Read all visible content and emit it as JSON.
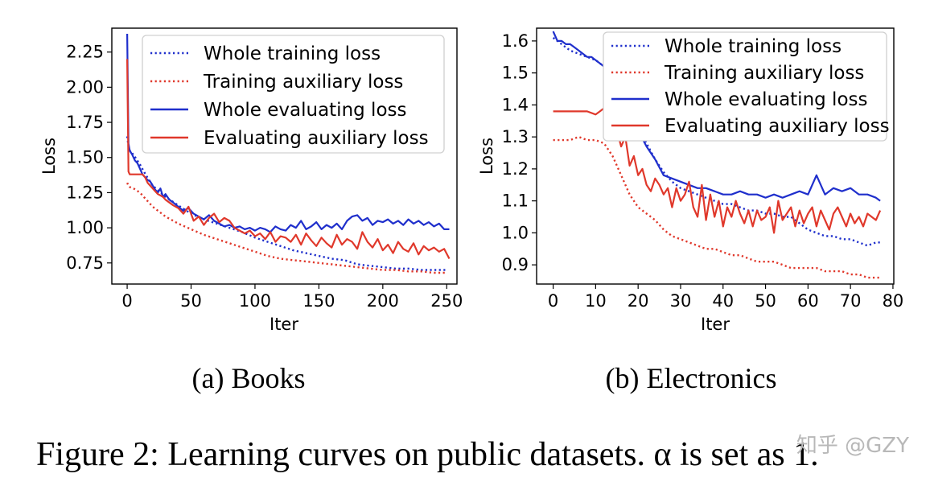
{
  "figure": {
    "caption": "Figure 2: Learning curves on public datasets. α is set as 1.",
    "watermark": "知乎 @GZY"
  },
  "colors": {
    "blue": "#1f2fcc",
    "red": "#e0382b"
  },
  "chart_data": [
    {
      "type": "line",
      "id": "books",
      "subcaption": "(a) Books",
      "xlabel": "Iter",
      "ylabel": "Loss",
      "xlim": [
        -12,
        258
      ],
      "ylim": [
        0.6,
        2.42
      ],
      "xticks": [
        0,
        50,
        100,
        150,
        200,
        250
      ],
      "yticks": [
        0.75,
        1.0,
        1.25,
        1.5,
        1.75,
        2.0,
        2.25
      ],
      "ytick_labels": [
        "0.75",
        "1.00",
        "1.25",
        "1.50",
        "1.75",
        "2.00",
        "2.25"
      ],
      "legend_position": "upper-right",
      "series": [
        {
          "name": "Whole training loss",
          "style": "dotted",
          "color": "blue",
          "x": [
            0,
            1,
            2,
            5,
            10,
            15,
            20,
            30,
            40,
            50,
            60,
            70,
            80,
            90,
            100,
            110,
            120,
            130,
            140,
            150,
            160,
            170,
            180,
            190,
            200,
            210,
            220,
            230,
            240,
            250
          ],
          "y": [
            1.65,
            1.58,
            1.55,
            1.52,
            1.45,
            1.37,
            1.3,
            1.22,
            1.16,
            1.1,
            1.06,
            1.03,
            1.0,
            0.97,
            0.93,
            0.9,
            0.87,
            0.84,
            0.82,
            0.8,
            0.78,
            0.77,
            0.74,
            0.73,
            0.72,
            0.71,
            0.71,
            0.7,
            0.7,
            0.7
          ]
        },
        {
          "name": "Training auxiliary loss",
          "style": "dotted",
          "color": "red",
          "x": [
            0,
            1,
            2,
            5,
            10,
            15,
            20,
            30,
            40,
            50,
            60,
            70,
            80,
            90,
            100,
            110,
            120,
            130,
            140,
            150,
            160,
            170,
            180,
            190,
            200,
            210,
            220,
            230,
            240,
            250
          ],
          "y": [
            1.32,
            1.3,
            1.29,
            1.28,
            1.25,
            1.2,
            1.15,
            1.08,
            1.03,
            0.99,
            0.95,
            0.92,
            0.89,
            0.86,
            0.83,
            0.8,
            0.78,
            0.77,
            0.76,
            0.75,
            0.74,
            0.73,
            0.72,
            0.71,
            0.7,
            0.7,
            0.69,
            0.69,
            0.68,
            0.68
          ]
        },
        {
          "name": "Whole evaluating loss",
          "style": "solid",
          "color": "blue",
          "x": [
            0,
            1,
            2,
            4,
            6,
            8,
            10,
            12,
            14,
            16,
            18,
            20,
            22,
            24,
            26,
            28,
            30,
            33,
            36,
            40,
            44,
            48,
            52,
            56,
            60,
            64,
            68,
            72,
            76,
            80,
            84,
            88,
            92,
            96,
            100,
            104,
            108,
            112,
            116,
            120,
            124,
            128,
            132,
            136,
            140,
            144,
            148,
            152,
            156,
            160,
            164,
            168,
            172,
            176,
            180,
            184,
            188,
            192,
            196,
            200,
            204,
            208,
            212,
            216,
            220,
            224,
            228,
            232,
            236,
            240,
            244,
            248,
            252
          ],
          "y": [
            2.38,
            1.6,
            1.55,
            1.52,
            1.48,
            1.46,
            1.42,
            1.38,
            1.36,
            1.34,
            1.33,
            1.3,
            1.27,
            1.25,
            1.28,
            1.22,
            1.24,
            1.2,
            1.18,
            1.15,
            1.12,
            1.14,
            1.1,
            1.08,
            1.06,
            1.09,
            1.05,
            1.03,
            1.01,
            1.02,
            1.0,
            1.01,
            0.99,
            1.0,
            0.98,
            1.0,
            0.99,
            0.97,
            1.01,
            0.99,
            0.98,
            1.02,
            1.0,
            1.05,
            0.99,
            1.01,
            1.04,
            0.99,
            1.02,
            1.0,
            1.03,
            0.99,
            1.05,
            1.08,
            1.09,
            1.05,
            1.07,
            1.02,
            1.05,
            1.04,
            1.06,
            1.03,
            1.05,
            1.02,
            1.06,
            1.03,
            1.05,
            1.02,
            1.04,
            1.01,
            1.03,
            0.99,
            0.99
          ]
        },
        {
          "name": "Evaluating auxiliary loss",
          "style": "solid",
          "color": "red",
          "x": [
            0,
            1,
            2,
            4,
            6,
            8,
            10,
            12,
            14,
            16,
            18,
            20,
            22,
            24,
            26,
            28,
            30,
            33,
            36,
            40,
            44,
            48,
            52,
            56,
            60,
            64,
            68,
            72,
            76,
            80,
            84,
            88,
            92,
            96,
            100,
            104,
            108,
            112,
            116,
            120,
            124,
            128,
            132,
            136,
            140,
            144,
            148,
            152,
            156,
            160,
            164,
            168,
            172,
            176,
            180,
            184,
            188,
            192,
            196,
            200,
            204,
            208,
            212,
            216,
            220,
            224,
            228,
            232,
            236,
            240,
            244,
            248,
            252
          ],
          "y": [
            2.2,
            1.4,
            1.38,
            1.38,
            1.38,
            1.38,
            1.38,
            1.38,
            1.36,
            1.32,
            1.3,
            1.28,
            1.26,
            1.24,
            1.23,
            1.22,
            1.2,
            1.18,
            1.16,
            1.14,
            1.1,
            1.15,
            1.05,
            1.08,
            1.02,
            1.07,
            1.1,
            1.04,
            1.07,
            1.05,
            1.0,
            0.98,
            0.96,
            0.98,
            0.94,
            0.96,
            0.92,
            0.97,
            0.9,
            0.94,
            0.93,
            0.9,
            0.95,
            0.88,
            0.96,
            0.91,
            0.87,
            0.93,
            0.89,
            0.86,
            0.95,
            0.88,
            0.92,
            0.9,
            0.85,
            0.97,
            0.9,
            0.86,
            0.92,
            0.84,
            0.88,
            0.82,
            0.9,
            0.85,
            0.83,
            0.89,
            0.81,
            0.87,
            0.84,
            0.86,
            0.83,
            0.85,
            0.78
          ]
        }
      ]
    },
    {
      "type": "line",
      "id": "electronics",
      "subcaption": "(b) Electronics",
      "xlabel": "Iter",
      "ylabel": "Loss",
      "xlim": [
        -3.9,
        80.2
      ],
      "ylim": [
        0.84,
        1.64
      ],
      "xticks": [
        0,
        10,
        20,
        30,
        40,
        50,
        60,
        70,
        80
      ],
      "yticks": [
        0.9,
        1.0,
        1.1,
        1.2,
        1.3,
        1.4,
        1.5,
        1.6
      ],
      "ytick_labels": [
        "0.9",
        "1.0",
        "1.1",
        "1.2",
        "1.3",
        "1.4",
        "1.5",
        "1.6"
      ],
      "legend_position": "upper-right",
      "series": [
        {
          "name": "Whole training loss",
          "style": "dotted",
          "color": "blue",
          "x": [
            0,
            2,
            4,
            6,
            8,
            10,
            12,
            14,
            16,
            18,
            20,
            22,
            24,
            26,
            28,
            30,
            32,
            34,
            36,
            38,
            40,
            42,
            44,
            46,
            48,
            50,
            52,
            54,
            56,
            58,
            60,
            62,
            64,
            66,
            68,
            70,
            72,
            74,
            76,
            77
          ],
          "y": [
            1.61,
            1.59,
            1.57,
            1.56,
            1.55,
            1.54,
            1.52,
            1.48,
            1.44,
            1.39,
            1.33,
            1.28,
            1.23,
            1.19,
            1.16,
            1.14,
            1.13,
            1.12,
            1.11,
            1.1,
            1.09,
            1.09,
            1.08,
            1.07,
            1.07,
            1.06,
            1.06,
            1.05,
            1.05,
            1.03,
            1.01,
            1.0,
            0.99,
            0.99,
            0.98,
            0.98,
            0.97,
            0.96,
            0.97,
            0.97
          ]
        },
        {
          "name": "Training auxiliary loss",
          "style": "dotted",
          "color": "red",
          "x": [
            0,
            2,
            4,
            6,
            8,
            10,
            12,
            14,
            16,
            18,
            20,
            22,
            24,
            26,
            28,
            30,
            32,
            34,
            36,
            38,
            40,
            42,
            44,
            46,
            48,
            50,
            52,
            54,
            56,
            58,
            60,
            62,
            64,
            66,
            68,
            70,
            72,
            74,
            76,
            77
          ],
          "y": [
            1.29,
            1.29,
            1.29,
            1.3,
            1.29,
            1.29,
            1.28,
            1.24,
            1.18,
            1.12,
            1.08,
            1.06,
            1.04,
            1.01,
            0.99,
            0.98,
            0.97,
            0.96,
            0.95,
            0.95,
            0.94,
            0.93,
            0.93,
            0.92,
            0.91,
            0.91,
            0.91,
            0.9,
            0.89,
            0.89,
            0.89,
            0.89,
            0.88,
            0.88,
            0.88,
            0.87,
            0.87,
            0.86,
            0.86,
            0.86
          ]
        },
        {
          "name": "Whole evaluating loss",
          "style": "solid",
          "color": "blue",
          "x": [
            0,
            1,
            2,
            3,
            4,
            5,
            6,
            7,
            8,
            9,
            10,
            11,
            12,
            13,
            14,
            15,
            16,
            17,
            18,
            19,
            20,
            22,
            24,
            26,
            28,
            30,
            32,
            34,
            36,
            38,
            40,
            42,
            44,
            46,
            48,
            50,
            52,
            54,
            56,
            58,
            60,
            62,
            64,
            66,
            68,
            70,
            72,
            74,
            76,
            77
          ],
          "y": [
            1.63,
            1.6,
            1.6,
            1.59,
            1.59,
            1.58,
            1.57,
            1.56,
            1.55,
            1.55,
            1.54,
            1.53,
            1.52,
            1.51,
            1.5,
            1.47,
            1.44,
            1.41,
            1.38,
            1.35,
            1.32,
            1.27,
            1.23,
            1.18,
            1.17,
            1.16,
            1.15,
            1.14,
            1.14,
            1.13,
            1.12,
            1.12,
            1.13,
            1.12,
            1.12,
            1.11,
            1.12,
            1.11,
            1.12,
            1.13,
            1.12,
            1.18,
            1.12,
            1.14,
            1.13,
            1.14,
            1.12,
            1.12,
            1.11,
            1.1
          ]
        },
        {
          "name": "Evaluating auxiliary loss",
          "style": "solid",
          "color": "red",
          "x": [
            0,
            2,
            4,
            6,
            8,
            10,
            11,
            12,
            13,
            14,
            15,
            16,
            17,
            18,
            19,
            20,
            21,
            22,
            23,
            24,
            25,
            26,
            27,
            28,
            29,
            30,
            31,
            32,
            33,
            34,
            35,
            36,
            37,
            38,
            39,
            40,
            41,
            42,
            43,
            44,
            45,
            46,
            47,
            48,
            49,
            50,
            51,
            52,
            53,
            54,
            55,
            56,
            57,
            58,
            59,
            60,
            61,
            62,
            63,
            64,
            65,
            66,
            67,
            68,
            69,
            70,
            71,
            72,
            73,
            74,
            75,
            76,
            77
          ],
          "y": [
            1.38,
            1.38,
            1.38,
            1.38,
            1.38,
            1.37,
            1.38,
            1.39,
            1.39,
            1.36,
            1.32,
            1.27,
            1.3,
            1.21,
            1.24,
            1.18,
            1.2,
            1.15,
            1.13,
            1.17,
            1.15,
            1.12,
            1.14,
            1.08,
            1.14,
            1.1,
            1.12,
            1.16,
            1.08,
            1.05,
            1.15,
            1.04,
            1.12,
            1.05,
            1.1,
            1.02,
            1.08,
            1.05,
            1.1,
            1.06,
            1.03,
            1.07,
            1.02,
            1.07,
            1.04,
            1.05,
            1.08,
            1.0,
            1.1,
            1.04,
            1.06,
            1.08,
            1.02,
            1.07,
            1.03,
            1.06,
            1.08,
            1.02,
            1.07,
            1.04,
            1.01,
            1.06,
            1.08,
            1.05,
            1.02,
            1.06,
            1.03,
            1.05,
            1.02,
            1.06,
            1.05,
            1.04,
            1.07
          ]
        }
      ]
    }
  ]
}
